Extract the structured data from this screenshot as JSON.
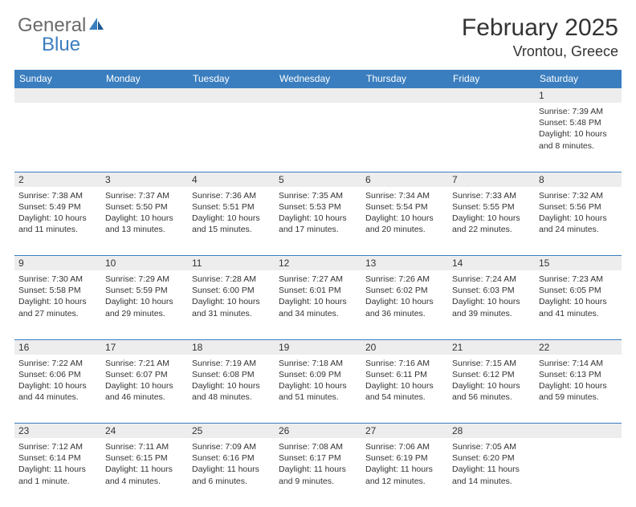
{
  "brand": {
    "part1": "General",
    "part2": "Blue"
  },
  "title": "February 2025",
  "location": "Vrontou, Greece",
  "colors": {
    "header_bg": "#3a7ebf",
    "daynum_bg": "#ededed",
    "border": "#3a7ebf",
    "text": "#333333",
    "logo_gray": "#6a6a6a",
    "logo_blue": "#3a7ebf",
    "page_bg": "#ffffff"
  },
  "typography": {
    "title_fontsize": 30,
    "location_fontsize": 18,
    "header_fontsize": 12,
    "daynum_fontsize": 12,
    "body_fontsize": 10.5
  },
  "day_headers": [
    "Sunday",
    "Monday",
    "Tuesday",
    "Wednesday",
    "Thursday",
    "Friday",
    "Saturday"
  ],
  "weeks": [
    [
      null,
      null,
      null,
      null,
      null,
      null,
      {
        "n": "1",
        "sunrise": "Sunrise: 7:39 AM",
        "sunset": "Sunset: 5:48 PM",
        "daylight": "Daylight: 10 hours and 8 minutes."
      }
    ],
    [
      {
        "n": "2",
        "sunrise": "Sunrise: 7:38 AM",
        "sunset": "Sunset: 5:49 PM",
        "daylight": "Daylight: 10 hours and 11 minutes."
      },
      {
        "n": "3",
        "sunrise": "Sunrise: 7:37 AM",
        "sunset": "Sunset: 5:50 PM",
        "daylight": "Daylight: 10 hours and 13 minutes."
      },
      {
        "n": "4",
        "sunrise": "Sunrise: 7:36 AM",
        "sunset": "Sunset: 5:51 PM",
        "daylight": "Daylight: 10 hours and 15 minutes."
      },
      {
        "n": "5",
        "sunrise": "Sunrise: 7:35 AM",
        "sunset": "Sunset: 5:53 PM",
        "daylight": "Daylight: 10 hours and 17 minutes."
      },
      {
        "n": "6",
        "sunrise": "Sunrise: 7:34 AM",
        "sunset": "Sunset: 5:54 PM",
        "daylight": "Daylight: 10 hours and 20 minutes."
      },
      {
        "n": "7",
        "sunrise": "Sunrise: 7:33 AM",
        "sunset": "Sunset: 5:55 PM",
        "daylight": "Daylight: 10 hours and 22 minutes."
      },
      {
        "n": "8",
        "sunrise": "Sunrise: 7:32 AM",
        "sunset": "Sunset: 5:56 PM",
        "daylight": "Daylight: 10 hours and 24 minutes."
      }
    ],
    [
      {
        "n": "9",
        "sunrise": "Sunrise: 7:30 AM",
        "sunset": "Sunset: 5:58 PM",
        "daylight": "Daylight: 10 hours and 27 minutes."
      },
      {
        "n": "10",
        "sunrise": "Sunrise: 7:29 AM",
        "sunset": "Sunset: 5:59 PM",
        "daylight": "Daylight: 10 hours and 29 minutes."
      },
      {
        "n": "11",
        "sunrise": "Sunrise: 7:28 AM",
        "sunset": "Sunset: 6:00 PM",
        "daylight": "Daylight: 10 hours and 31 minutes."
      },
      {
        "n": "12",
        "sunrise": "Sunrise: 7:27 AM",
        "sunset": "Sunset: 6:01 PM",
        "daylight": "Daylight: 10 hours and 34 minutes."
      },
      {
        "n": "13",
        "sunrise": "Sunrise: 7:26 AM",
        "sunset": "Sunset: 6:02 PM",
        "daylight": "Daylight: 10 hours and 36 minutes."
      },
      {
        "n": "14",
        "sunrise": "Sunrise: 7:24 AM",
        "sunset": "Sunset: 6:03 PM",
        "daylight": "Daylight: 10 hours and 39 minutes."
      },
      {
        "n": "15",
        "sunrise": "Sunrise: 7:23 AM",
        "sunset": "Sunset: 6:05 PM",
        "daylight": "Daylight: 10 hours and 41 minutes."
      }
    ],
    [
      {
        "n": "16",
        "sunrise": "Sunrise: 7:22 AM",
        "sunset": "Sunset: 6:06 PM",
        "daylight": "Daylight: 10 hours and 44 minutes."
      },
      {
        "n": "17",
        "sunrise": "Sunrise: 7:21 AM",
        "sunset": "Sunset: 6:07 PM",
        "daylight": "Daylight: 10 hours and 46 minutes."
      },
      {
        "n": "18",
        "sunrise": "Sunrise: 7:19 AM",
        "sunset": "Sunset: 6:08 PM",
        "daylight": "Daylight: 10 hours and 48 minutes."
      },
      {
        "n": "19",
        "sunrise": "Sunrise: 7:18 AM",
        "sunset": "Sunset: 6:09 PM",
        "daylight": "Daylight: 10 hours and 51 minutes."
      },
      {
        "n": "20",
        "sunrise": "Sunrise: 7:16 AM",
        "sunset": "Sunset: 6:11 PM",
        "daylight": "Daylight: 10 hours and 54 minutes."
      },
      {
        "n": "21",
        "sunrise": "Sunrise: 7:15 AM",
        "sunset": "Sunset: 6:12 PM",
        "daylight": "Daylight: 10 hours and 56 minutes."
      },
      {
        "n": "22",
        "sunrise": "Sunrise: 7:14 AM",
        "sunset": "Sunset: 6:13 PM",
        "daylight": "Daylight: 10 hours and 59 minutes."
      }
    ],
    [
      {
        "n": "23",
        "sunrise": "Sunrise: 7:12 AM",
        "sunset": "Sunset: 6:14 PM",
        "daylight": "Daylight: 11 hours and 1 minute."
      },
      {
        "n": "24",
        "sunrise": "Sunrise: 7:11 AM",
        "sunset": "Sunset: 6:15 PM",
        "daylight": "Daylight: 11 hours and 4 minutes."
      },
      {
        "n": "25",
        "sunrise": "Sunrise: 7:09 AM",
        "sunset": "Sunset: 6:16 PM",
        "daylight": "Daylight: 11 hours and 6 minutes."
      },
      {
        "n": "26",
        "sunrise": "Sunrise: 7:08 AM",
        "sunset": "Sunset: 6:17 PM",
        "daylight": "Daylight: 11 hours and 9 minutes."
      },
      {
        "n": "27",
        "sunrise": "Sunrise: 7:06 AM",
        "sunset": "Sunset: 6:19 PM",
        "daylight": "Daylight: 11 hours and 12 minutes."
      },
      {
        "n": "28",
        "sunrise": "Sunrise: 7:05 AM",
        "sunset": "Sunset: 6:20 PM",
        "daylight": "Daylight: 11 hours and 14 minutes."
      },
      null
    ]
  ]
}
